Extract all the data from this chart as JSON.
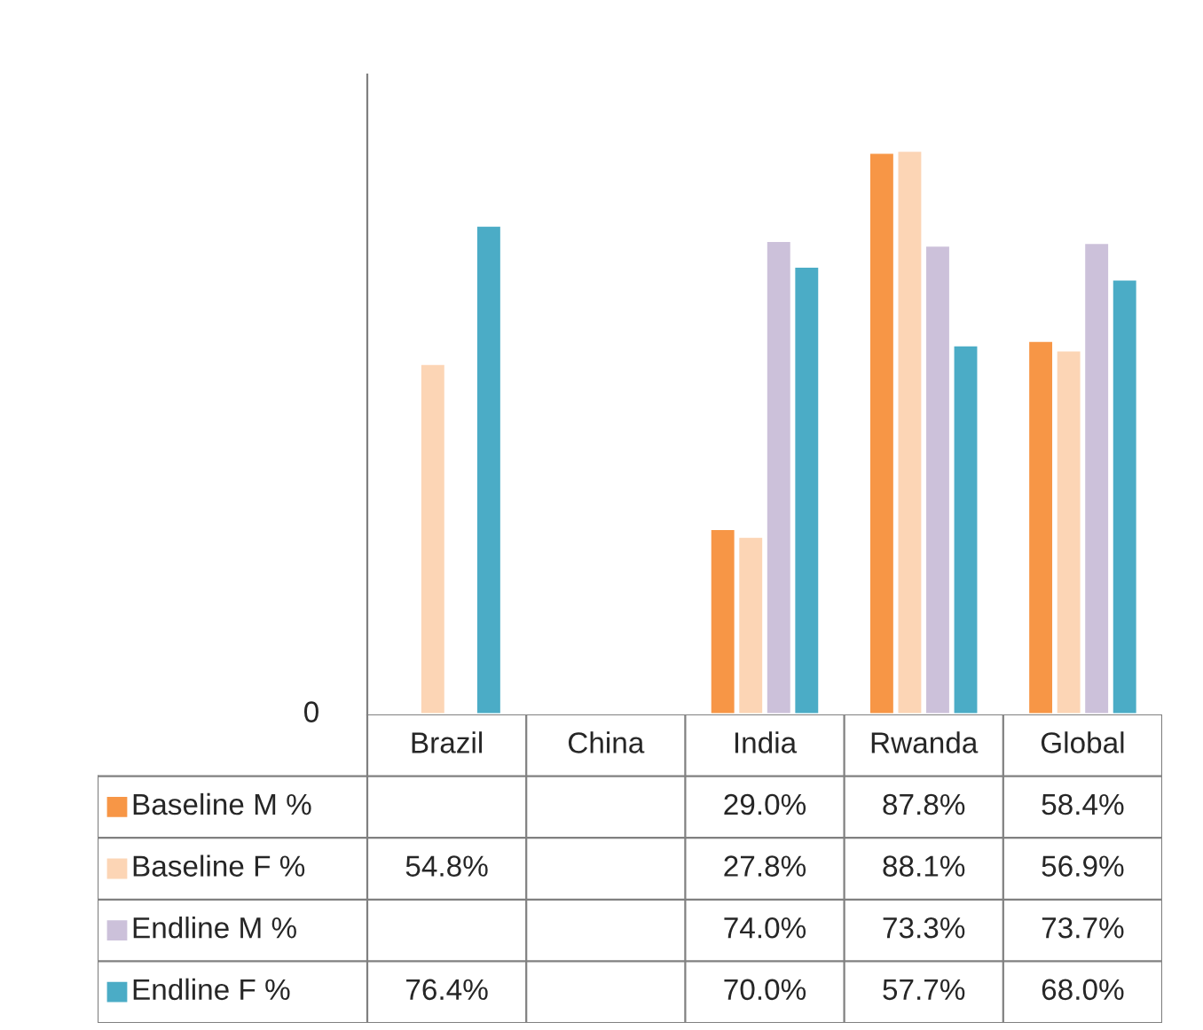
{
  "chart_data": {
    "type": "bar",
    "categories": [
      "Brazil",
      "China",
      "India",
      "Rwanda",
      "Global"
    ],
    "series": [
      {
        "name": "Baseline M %",
        "color": "#f79646",
        "values": [
          null,
          null,
          29.0,
          87.8,
          58.4
        ],
        "value_labels": [
          null,
          null,
          "29.0%",
          "87.8%",
          "58.4%"
        ]
      },
      {
        "name": "Baseline F %",
        "color": "#fcd5b5",
        "values": [
          54.8,
          null,
          27.8,
          88.1,
          56.9
        ],
        "value_labels": [
          "54.8%",
          null,
          "27.8%",
          "88.1%",
          "56.9%"
        ]
      },
      {
        "name": "Endline M %",
        "color": "#ccc1da",
        "values": [
          null,
          null,
          74.0,
          73.3,
          73.7
        ],
        "value_labels": [
          null,
          null,
          "74.0%",
          "73.3%",
          "73.7%"
        ]
      },
      {
        "name": "Endline F %",
        "color": "#4bacc6",
        "values": [
          76.4,
          null,
          70.0,
          57.7,
          68.0
        ],
        "value_labels": [
          "76.4%",
          null,
          "70.0%",
          "57.7%",
          "68.0%"
        ]
      }
    ],
    "annotations": [
      "0"
    ],
    "legend": "bottom",
    "data_labels": true
  }
}
